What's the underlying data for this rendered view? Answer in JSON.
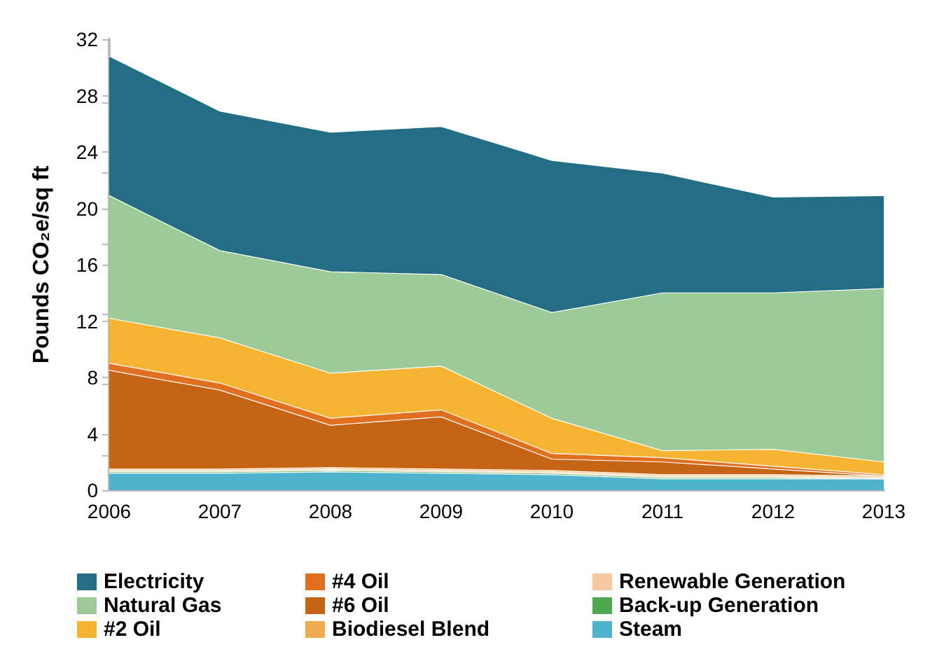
{
  "chart_data": {
    "type": "area",
    "stacked": true,
    "ylabel": "Pounds CO₂e/sq ft",
    "categories": [
      "2006",
      "2007",
      "2008",
      "2009",
      "2010",
      "2011",
      "2012",
      "2013"
    ],
    "series": [
      {
        "name": "Steam",
        "color": "#4fb3ce",
        "values": [
          1.2,
          1.2,
          1.3,
          1.2,
          1.1,
          0.8,
          0.8,
          0.8
        ]
      },
      {
        "name": "Back-up Generation",
        "color": "#50a850",
        "values": [
          0.1,
          0.1,
          0.1,
          0.1,
          0.1,
          0.1,
          0.1,
          0
        ]
      },
      {
        "name": "Renewable Generation",
        "color": "#f5c8a0",
        "values": [
          0.1,
          0.1,
          0.1,
          0.1,
          0.1,
          0.1,
          0.1,
          0.1
        ]
      },
      {
        "name": "Biodiesel Blend",
        "color": "#f0aa50",
        "values": [
          0.1,
          0.1,
          0.1,
          0.1,
          0.1,
          0.1,
          0.1,
          0.1
        ]
      },
      {
        "name": "#6 Oil",
        "color": "#c46414",
        "values": [
          7.0,
          5.6,
          3.0,
          3.7,
          0.8,
          0.9,
          0.4,
          0
        ]
      },
      {
        "name": "#4 Oil",
        "color": "#e07020",
        "values": [
          0.5,
          0.5,
          0.5,
          0.5,
          0.4,
          0.3,
          0.2,
          0.1
        ]
      },
      {
        "name": "#2 Oil",
        "color": "#f5b432",
        "values": [
          3.2,
          3.2,
          3.2,
          3.1,
          2.5,
          0.5,
          1.2,
          0.9
        ]
      },
      {
        "name": "Natural Gas",
        "color": "#9dcb97",
        "values": [
          8.7,
          6.2,
          7.2,
          6.5,
          7.5,
          11.2,
          11.1,
          12.3
        ]
      },
      {
        "name": "Electricity",
        "color": "#236e84",
        "values": [
          9.9,
          9.9,
          9.9,
          10.5,
          10.8,
          8.5,
          6.8,
          6.6
        ]
      }
    ],
    "ylim": [
      0,
      32
    ],
    "yticks": [
      0,
      4,
      8,
      12,
      16,
      20,
      24,
      28,
      32
    ],
    "grid": false,
    "legend": "bottom"
  }
}
